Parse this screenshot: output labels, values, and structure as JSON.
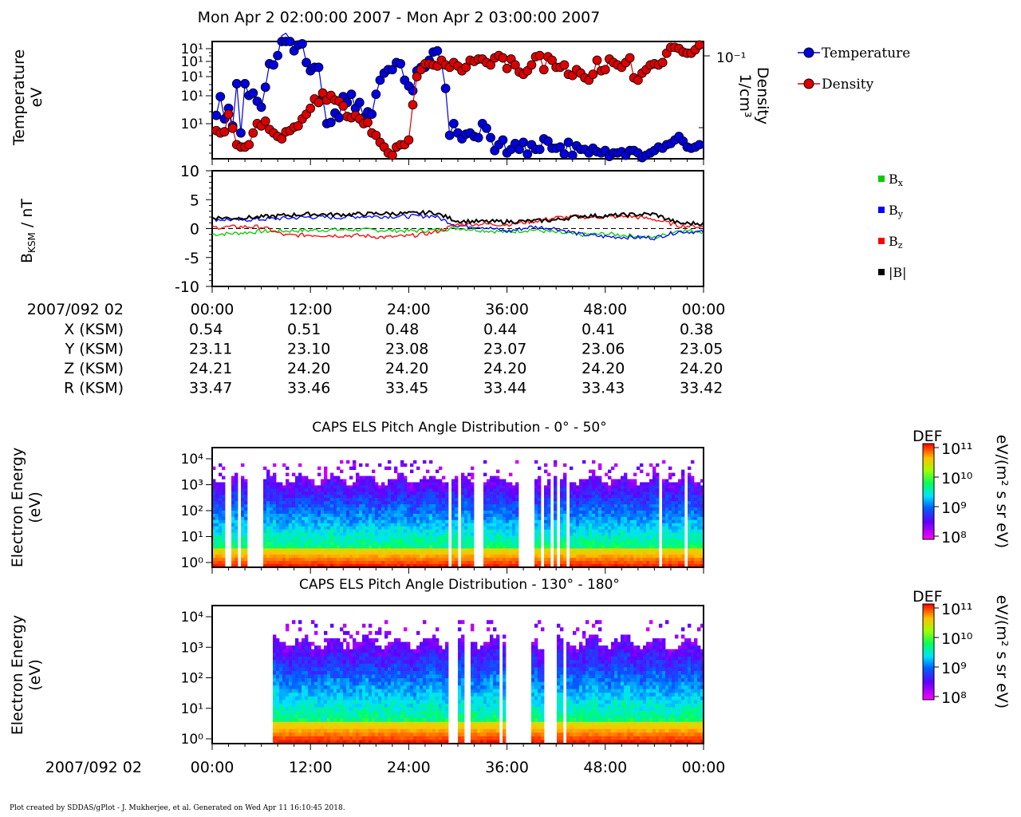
{
  "page": {
    "title": "Mon Apr 2 02:00:00 2007 - Mon Apr 2 03:00:00 2007",
    "footer": "Plot created by SDDAS/gPlot - J. Mukherjee, et al.  Generated on Wed Apr 11 16:10:45 2018."
  },
  "colors": {
    "temperature": "#0000dd",
    "density": "#dd0000",
    "bx": "#00cc00",
    "by": "#0000ff",
    "bz": "#ff0000",
    "bmag": "#000000"
  },
  "time_axis": {
    "date_label": "2007/092 02",
    "ticks": [
      "00:00",
      "12:00",
      "24:00",
      "36:00",
      "48:00",
      "00:00"
    ]
  },
  "ephemeris": {
    "rows": [
      {
        "label": "X (KSM)",
        "values": [
          "0.54",
          "0.51",
          "0.48",
          "0.44",
          "0.41",
          "0.38"
        ]
      },
      {
        "label": "Y (KSM)",
        "values": [
          "23.11",
          "23.10",
          "23.08",
          "23.07",
          "23.06",
          "23.05"
        ]
      },
      {
        "label": "Z (KSM)",
        "values": [
          "24.21",
          "24.20",
          "24.20",
          "24.20",
          "24.20",
          "24.20"
        ]
      },
      {
        "label": "R (KSM)",
        "values": [
          "33.47",
          "33.46",
          "33.45",
          "33.44",
          "33.43",
          "33.42"
        ]
      }
    ]
  },
  "chart_data": [
    {
      "type": "scatter",
      "ylabel_left": "Temperature\neV",
      "ylabel_right": "Density\n1/cm³",
      "yticks_left": [
        "10¹",
        "10¹",
        "10¹",
        "10¹",
        "10¹"
      ],
      "ytick_right": "10⁻¹",
      "xlabel": "",
      "x_minutes": [
        0,
        60
      ],
      "legend_position": "right",
      "series": [
        {
          "name": "Temperature",
          "color": "#0000dd",
          "x": [
            0.5,
            1.0,
            1.5,
            2.0,
            2.5,
            3.0,
            3.5,
            4.0,
            4.5,
            5.0,
            5.5,
            6.0,
            6.5,
            7.0,
            7.5,
            8.0,
            8.5,
            9.0,
            9.5,
            10.0,
            10.5,
            11.0,
            11.5,
            12.0,
            12.5,
            13.0,
            13.5,
            14.0,
            14.5,
            15.0,
            15.5,
            16.0,
            16.5,
            17.0,
            17.5,
            18.0,
            18.5,
            19.0,
            19.5,
            20.0,
            20.5,
            21.0,
            21.5,
            22.0,
            22.5,
            23.0,
            23.5,
            24.0,
            24.5,
            25.0,
            25.5,
            26.0,
            26.5,
            27.0,
            27.5,
            28.0,
            28.5,
            29.0,
            29.5,
            30.0,
            30.5,
            31.0,
            31.5,
            32.0,
            32.5,
            33.0,
            33.5,
            34.0,
            34.5,
            35.0,
            35.5,
            36.0,
            36.5,
            37.0,
            37.5,
            38.0,
            38.5,
            39.0,
            39.5,
            40.0,
            40.5,
            41.0,
            41.5,
            42.0,
            42.5,
            43.0,
            43.5,
            44.0,
            44.5,
            45.0,
            45.5,
            46.0,
            46.5,
            47.0,
            47.5,
            48.0,
            48.5,
            49.0,
            49.5,
            50.0,
            50.5,
            51.0,
            51.5,
            52.0,
            52.5,
            53.0,
            53.5,
            54.0,
            54.5,
            55.0,
            55.5,
            56.0,
            56.5,
            57.0,
            57.5,
            58.0,
            58.5,
            59.0,
            59.5
          ],
          "y_rel": [
            0.37,
            0.53,
            0.34,
            0.43,
            0.28,
            0.64,
            0.22,
            0.64,
            0.54,
            0.56,
            0.49,
            0.44,
            0.61,
            0.81,
            0.8,
            0.88,
            1.05,
            1.07,
            1.02,
            0.92,
            0.97,
            0.98,
            0.82,
            0.75,
            0.78,
            0.78,
            0.52,
            0.3,
            0.31,
            0.39,
            0.35,
            0.53,
            0.48,
            0.55,
            0.43,
            0.48,
            0.35,
            0.4,
            0.38,
            0.55,
            0.67,
            0.73,
            0.76,
            0.76,
            0.82,
            0.81,
            0.67,
            0.62,
            0.58,
            0.75,
            0.78,
            0.78,
            0.84,
            0.91,
            0.92,
            0.81,
            0.6,
            0.2,
            0.3,
            0.22,
            0.17,
            0.21,
            0.22,
            0.19,
            0.18,
            0.3,
            0.26,
            0.18,
            0.07,
            0.12,
            0.16,
            0.05,
            0.08,
            0.13,
            0.08,
            0.14,
            0.04,
            0.12,
            0.08,
            0.08,
            0.17,
            0.15,
            0.09,
            0.09,
            0.1,
            0.04,
            0.14,
            0.03,
            0.11,
            0.08,
            0.08,
            0.05,
            0.09,
            0.06,
            0.05,
            0.07,
            0.02,
            0.05,
            0.05,
            0.06,
            0.03,
            0.07,
            0.07,
            0.05,
            0.01,
            0.03,
            0.05,
            0.07,
            0.1,
            0.09,
            0.12,
            0.13,
            0.16,
            0.19,
            0.15,
            0.1,
            0.09,
            0.1,
            0.12
          ]
        },
        {
          "name": "Density",
          "color": "#dd0000",
          "x": [
            0.5,
            1.0,
            1.5,
            2.0,
            2.5,
            3.0,
            3.5,
            4.0,
            4.5,
            5.0,
            5.5,
            6.0,
            6.5,
            7.0,
            7.5,
            8.0,
            8.5,
            9.0,
            9.5,
            10.0,
            10.5,
            11.0,
            11.5,
            12.0,
            12.5,
            13.0,
            13.5,
            14.0,
            14.5,
            15.0,
            15.5,
            16.0,
            16.5,
            17.0,
            17.5,
            18.0,
            18.5,
            19.0,
            19.5,
            20.0,
            20.5,
            21.0,
            21.5,
            22.0,
            22.5,
            23.0,
            23.5,
            24.0,
            24.5,
            25.0,
            25.5,
            26.0,
            26.5,
            27.0,
            27.5,
            28.0,
            28.5,
            29.0,
            29.5,
            30.0,
            30.5,
            31.0,
            31.5,
            32.0,
            32.5,
            33.0,
            33.5,
            34.0,
            34.5,
            35.0,
            35.5,
            36.0,
            36.5,
            37.0,
            37.5,
            38.0,
            38.5,
            39.0,
            39.5,
            40.0,
            40.5,
            41.0,
            41.5,
            42.0,
            42.5,
            43.0,
            43.5,
            44.0,
            44.5,
            45.0,
            45.5,
            46.0,
            46.5,
            47.0,
            47.5,
            48.0,
            48.5,
            49.0,
            49.5,
            50.0,
            50.5,
            51.0,
            51.5,
            52.0,
            52.5,
            53.0,
            53.5,
            54.0,
            54.5,
            55.0,
            55.5,
            56.0,
            56.5,
            57.0,
            57.5,
            58.0,
            58.5,
            59.0,
            59.5
          ],
          "y_rel": [
            0.24,
            0.22,
            0.23,
            0.38,
            0.26,
            0.12,
            0.1,
            0.1,
            0.12,
            0.22,
            0.3,
            0.28,
            0.32,
            0.25,
            0.22,
            0.19,
            0.17,
            0.23,
            0.24,
            0.27,
            0.28,
            0.34,
            0.38,
            0.43,
            0.51,
            0.48,
            0.56,
            0.5,
            0.54,
            0.5,
            0.49,
            0.45,
            0.36,
            0.35,
            0.37,
            0.34,
            0.3,
            0.31,
            0.22,
            0.2,
            0.14,
            0.1,
            0.05,
            0.03,
            0.1,
            0.12,
            0.12,
            0.16,
            0.46,
            0.7,
            0.76,
            0.81,
            0.81,
            0.8,
            0.79,
            0.84,
            0.8,
            0.78,
            0.82,
            0.79,
            0.75,
            0.78,
            0.84,
            0.83,
            0.85,
            0.85,
            0.82,
            0.8,
            0.86,
            0.88,
            0.86,
            0.77,
            0.85,
            0.8,
            0.74,
            0.72,
            0.75,
            0.8,
            0.87,
            0.88,
            0.76,
            0.87,
            0.84,
            0.78,
            0.78,
            0.8,
            0.72,
            0.71,
            0.76,
            0.73,
            0.69,
            0.67,
            0.72,
            0.84,
            0.75,
            0.76,
            0.85,
            0.82,
            0.8,
            0.78,
            0.82,
            0.86,
            0.69,
            0.67,
            0.73,
            0.76,
            0.8,
            0.81,
            0.8,
            0.82,
            0.9,
            0.95,
            0.95,
            0.94,
            0.91,
            0.9,
            0.9,
            0.93,
            0.97
          ]
        }
      ]
    },
    {
      "type": "line",
      "ylabel": "BKSM / nT",
      "ylim": [
        -10,
        10
      ],
      "yticks": [
        10,
        5,
        0,
        -5,
        -10
      ],
      "x_minutes": [
        0,
        60
      ],
      "legend_position": "right",
      "series": [
        {
          "name": "Bx",
          "color": "#00cc00",
          "x": [
            0,
            3,
            6,
            9,
            12,
            15,
            18,
            21,
            24,
            27,
            30,
            33,
            36,
            39,
            42,
            45,
            48,
            51,
            54,
            57,
            60
          ],
          "values": [
            -1.0,
            -0.8,
            -0.5,
            -0.4,
            -0.3,
            -0.2,
            -0.2,
            -0.3,
            -0.4,
            -0.3,
            0.1,
            -0.3,
            -0.6,
            -0.2,
            -0.7,
            -1.1,
            -0.9,
            -1.2,
            -1.6,
            -0.3,
            -0.5
          ]
        },
        {
          "name": "By",
          "color": "#0000ff",
          "x": [
            0,
            3,
            6,
            9,
            12,
            15,
            18,
            21,
            24,
            27,
            30,
            33,
            36,
            39,
            42,
            45,
            48,
            51,
            54,
            57,
            60
          ],
          "values": [
            1.6,
            1.5,
            1.6,
            1.8,
            2.0,
            1.9,
            2.1,
            2.1,
            2.1,
            2.2,
            0.5,
            0.3,
            -0.5,
            0.3,
            0.0,
            -1.0,
            -1.4,
            -1.5,
            -1.6,
            -0.5,
            -0.6
          ]
        },
        {
          "name": "Bz",
          "color": "#ff0000",
          "x": [
            0,
            3,
            6,
            9,
            12,
            15,
            18,
            21,
            24,
            27,
            30,
            33,
            36,
            39,
            42,
            45,
            48,
            51,
            54,
            57,
            60
          ],
          "values": [
            0.2,
            0.3,
            0.3,
            -1.2,
            -1.1,
            -1.2,
            -1.2,
            -1.5,
            -1.3,
            -0.7,
            0.7,
            0.8,
            0.7,
            1.2,
            1.9,
            2.0,
            2.0,
            2.1,
            1.6,
            0.5,
            0.3
          ]
        },
        {
          "name": "|B|",
          "color": "#000000",
          "x": [
            0,
            3,
            6,
            9,
            12,
            15,
            18,
            21,
            24,
            27,
            30,
            33,
            36,
            39,
            42,
            45,
            48,
            51,
            54,
            57,
            60
          ],
          "values": [
            1.9,
            1.8,
            2.0,
            2.3,
            2.5,
            2.4,
            2.5,
            2.6,
            2.6,
            2.8,
            1.3,
            1.2,
            1.2,
            1.3,
            1.5,
            2.2,
            2.2,
            2.4,
            2.5,
            0.9,
            0.9
          ]
        }
      ]
    },
    {
      "type": "heatmap",
      "title": "CAPS ELS Pitch Angle Distribution - 0° - 50°",
      "ylabel": "Electron Energy\n(eV)",
      "yticks": [
        "10⁴",
        "10³",
        "10²",
        "10¹",
        "10⁰"
      ],
      "colorbar": {
        "label": "DEF",
        "units": "eV/(m² s sr eV)",
        "ticks": [
          "10¹¹",
          "10¹⁰",
          "10⁹",
          "10⁸"
        ]
      }
    },
    {
      "type": "heatmap",
      "title": "CAPS ELS Pitch Angle Distribution - 130° - 180°",
      "ylabel": "Electron Energy\n(eV)",
      "yticks": [
        "10⁴",
        "10³",
        "10²",
        "10¹",
        "10⁰"
      ],
      "colorbar": {
        "label": "DEF",
        "units": "eV/(m² s sr eV)",
        "ticks": [
          "10¹¹",
          "10¹⁰",
          "10⁹",
          "10⁸"
        ]
      }
    }
  ]
}
